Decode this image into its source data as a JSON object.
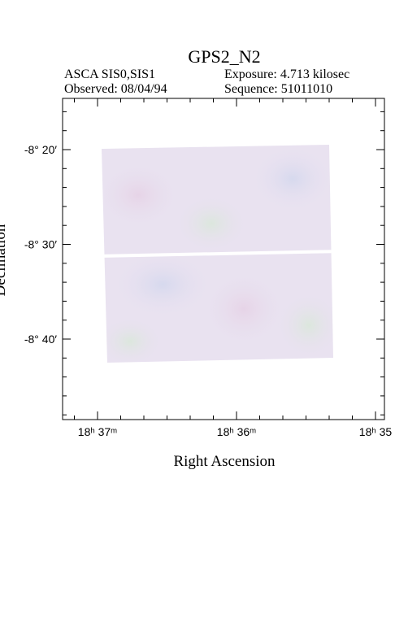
{
  "header": {
    "title": "GPS2_N2",
    "instrument": "ASCA SIS0,SIS1",
    "exposure": "Exposure: 4.713 kilosec",
    "observed": "Observed: 08/04/94",
    "sequence": "Sequence: 51011010"
  },
  "plot": {
    "y_label": "Declination",
    "x_label": "Right Ascension",
    "y_ticks": [
      "-8° 20′",
      "-8° 30′",
      "-8° 40′"
    ],
    "x_ticks": [
      "18ʰ 37ᵐ",
      "18ʰ 36ᵐ",
      "18ʰ 35"
    ]
  }
}
